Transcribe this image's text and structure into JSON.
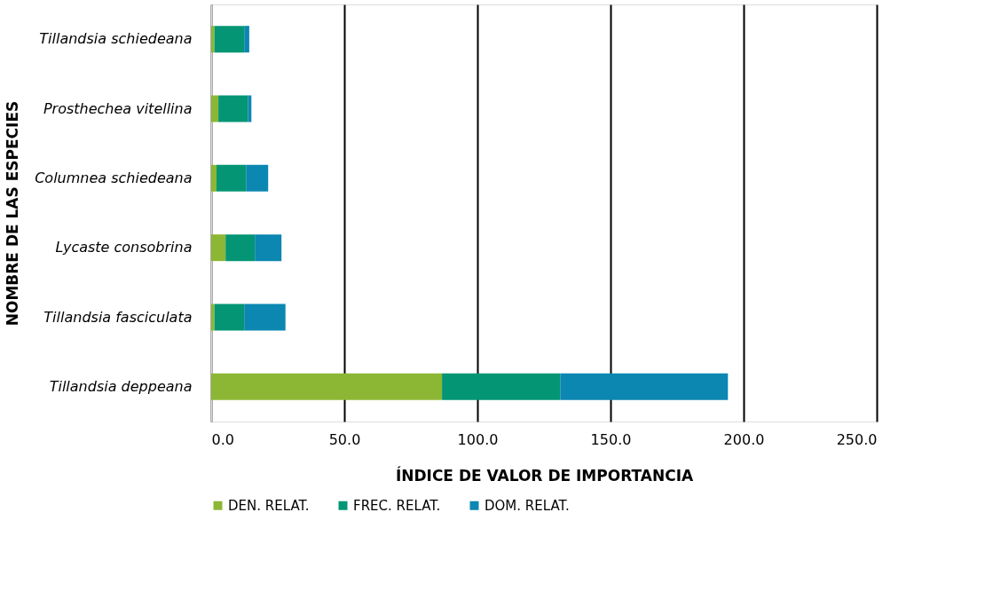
{
  "chart_data": {
    "type": "bar",
    "orientation": "horizontal",
    "stacked": true,
    "categories": [
      "Tillandsia schiedeana",
      "Prosthechea vitellina",
      "Columnea schiedeana",
      "Lycaste consobrina",
      "Tillandsia fasciculata",
      "Tillandsia deppeana"
    ],
    "series": [
      {
        "name": "DEN. RELAT.",
        "color": "#8cb734",
        "values": [
          1.2,
          2.7,
          2.0,
          5.4,
          1.2,
          86.7
        ]
      },
      {
        "name": "FREC. RELAT.",
        "color": "#039574",
        "values": [
          11.2,
          11.1,
          11.1,
          11.0,
          11.2,
          44.4
        ]
      },
      {
        "name": "DOM. RELAT.",
        "color": "#0b87b1",
        "values": [
          1.9,
          1.3,
          8.3,
          10.0,
          15.5,
          63.0
        ]
      }
    ],
    "xlabel": "ÍNDICE DE VALOR DE IMPORTANCIA",
    "ylabel": "NOMBRE DE LAS ESPECIES",
    "xlim": [
      0,
      250
    ],
    "xticks": [
      {
        "value": 0,
        "label": "0.0"
      },
      {
        "value": 50,
        "label": "50.0"
      },
      {
        "value": 100,
        "label": "100.0"
      },
      {
        "value": 150,
        "label": "150.0"
      },
      {
        "value": 200,
        "label": "200.0"
      },
      {
        "value": 250,
        "label": "250.0"
      }
    ],
    "grid": "x",
    "legend": "bottom"
  }
}
